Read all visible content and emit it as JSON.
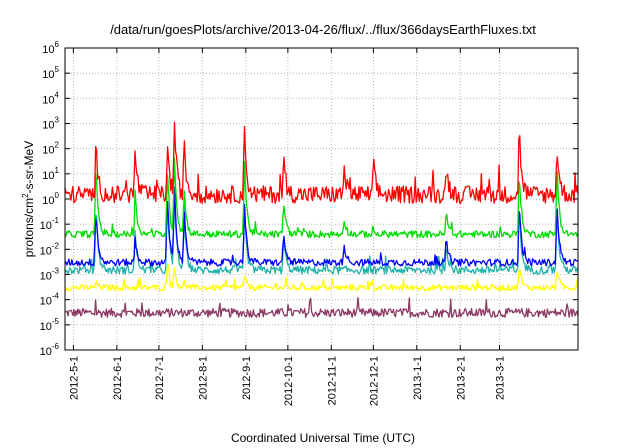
{
  "chart_data": {
    "type": "line",
    "title": "/data/run/goesPlots/archive/2013-04-26/flux/../flux/366daysEarthFluxes.txt",
    "xlabel": "Coordinated Universal Time (UTC)",
    "ylabel": {
      "base": "protons/cm",
      "sup": "2",
      "rest": "-s-sr-MeV"
    },
    "x_ticks": [
      "2012-5-1",
      "2012-6-1",
      "2012-7-1",
      "2012-8-1",
      "2012-9-1",
      "2012-10-1",
      "2012-11-1",
      "2012-12-1",
      "2013-1-1",
      "2013-2-1",
      "2013-3-1"
    ],
    "xlim": [
      "2012-04-25",
      "2013-04-26"
    ],
    "y_scale": "log",
    "ylim": [
      1e-06,
      1000000.0
    ],
    "y_ticks": [
      {
        "base": "10",
        "exp": "-6"
      },
      {
        "base": "10",
        "exp": "-5"
      },
      {
        "base": "10",
        "exp": "-4"
      },
      {
        "base": "10",
        "exp": "-3"
      },
      {
        "base": "10",
        "exp": "-2"
      },
      {
        "base": "10",
        "exp": "-1"
      },
      {
        "base": "10",
        "exp": "0"
      },
      {
        "base": "10",
        "exp": "1"
      },
      {
        "base": "10",
        "exp": "2"
      },
      {
        "base": "10",
        "exp": "3"
      },
      {
        "base": "10",
        "exp": "4"
      },
      {
        "base": "10",
        "exp": "5"
      },
      {
        "base": "10",
        "exp": "6"
      }
    ],
    "grid": true,
    "legend": "none",
    "series": [
      {
        "color": "#8b3a62",
        "baseline": 3e-05,
        "spread": 0.18,
        "events": []
      },
      {
        "color": "#ffff00",
        "baseline": 0.0003,
        "spread": 0.12,
        "events": [
          [
            "2012-05-17",
            0.0005
          ],
          [
            "2012-07-07",
            0.002
          ],
          [
            "2012-07-12",
            0.002
          ],
          [
            "2012-07-19",
            0.0005
          ],
          [
            "2012-08-31",
            0.001
          ],
          [
            "2013-03-15",
            0.003
          ],
          [
            "2013-04-11",
            0.002
          ]
        ]
      },
      {
        "color": "#20b2aa",
        "baseline": 0.0015,
        "spread": 0.16,
        "events": [
          [
            "2012-05-17",
            1
          ],
          [
            "2012-06-14",
            0.05
          ],
          [
            "2012-07-07",
            1
          ],
          [
            "2012-07-12",
            3
          ],
          [
            "2012-07-19",
            0.3
          ],
          [
            "2012-08-31",
            0.5
          ],
          [
            "2012-09-28",
            0.03
          ],
          [
            "2013-01-22",
            0.02
          ],
          [
            "2013-03-15",
            0.5
          ],
          [
            "2013-04-11",
            0.5
          ]
        ]
      },
      {
        "color": "#0000ff",
        "baseline": 0.003,
        "spread": 0.14,
        "events": [
          [
            "2012-05-17",
            0.5
          ],
          [
            "2012-06-14",
            0.03
          ],
          [
            "2012-07-07",
            2
          ],
          [
            "2012-07-12",
            5
          ],
          [
            "2012-07-19",
            0.5
          ],
          [
            "2012-08-31",
            1
          ],
          [
            "2012-09-28",
            0.05
          ],
          [
            "2012-11-10",
            0.02
          ],
          [
            "2013-01-22",
            0.03
          ],
          [
            "2013-03-15",
            1
          ],
          [
            "2013-04-11",
            1
          ]
        ]
      },
      {
        "color": "#00dd00",
        "baseline": 0.04,
        "spread": 0.14,
        "events": [
          [
            "2012-05-17",
            30
          ],
          [
            "2012-06-14",
            2
          ],
          [
            "2012-07-07",
            20
          ],
          [
            "2012-07-12",
            100
          ],
          [
            "2012-07-19",
            3
          ],
          [
            "2012-08-31",
            50
          ],
          [
            "2012-09-28",
            1
          ],
          [
            "2012-11-10",
            0.2
          ],
          [
            "2013-01-22",
            0.3
          ],
          [
            "2013-03-15",
            20
          ],
          [
            "2013-04-11",
            30
          ]
        ]
      },
      {
        "color": "#ff0000",
        "baseline": 1.5,
        "spread": 0.35,
        "events": [
          [
            "2012-05-17",
            150
          ],
          [
            "2012-06-14",
            100
          ],
          [
            "2012-07-07",
            150
          ],
          [
            "2012-07-12",
            2000
          ],
          [
            "2012-07-19",
            200
          ],
          [
            "2012-08-31",
            700
          ],
          [
            "2012-09-28",
            50
          ],
          [
            "2012-11-10",
            20
          ],
          [
            "2012-12-01",
            30
          ],
          [
            "2013-01-22",
            30
          ],
          [
            "2013-03-15",
            1000
          ],
          [
            "2013-04-11",
            150
          ]
        ]
      }
    ]
  }
}
